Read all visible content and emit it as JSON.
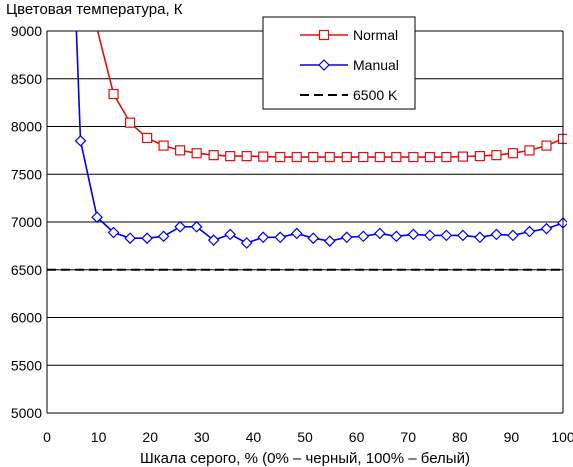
{
  "chart_data": {
    "type": "line",
    "title": "Цветовая температура, К",
    "xlabel": "Шкала серого, % (0% – черный, 100% – белый)",
    "ylabel": "",
    "xlim": [
      0,
      100
    ],
    "ylim": [
      5000,
      9000
    ],
    "x_ticks": [
      "0",
      "10",
      "20",
      "30",
      "40",
      "50",
      "60",
      "70",
      "80",
      "90",
      "100"
    ],
    "y_ticks": [
      "9000",
      "8500",
      "8000",
      "7500",
      "7000",
      "6500",
      "6000",
      "5500",
      "5000"
    ],
    "grid": "horizontal",
    "legend_position": "top-right",
    "series": [
      {
        "name": "Normal",
        "color": "#e01010",
        "marker": "square",
        "line": "solid",
        "points": [
          [
            9.8,
            9000
          ],
          [
            12.9,
            8340
          ],
          [
            16.1,
            8040
          ],
          [
            19.4,
            7880
          ],
          [
            22.6,
            7800
          ],
          [
            25.8,
            7750
          ],
          [
            29.0,
            7720
          ],
          [
            32.3,
            7700
          ],
          [
            35.5,
            7690
          ],
          [
            38.7,
            7690
          ],
          [
            41.9,
            7685
          ],
          [
            45.2,
            7680
          ],
          [
            48.4,
            7680
          ],
          [
            51.6,
            7680
          ],
          [
            54.8,
            7680
          ],
          [
            58.1,
            7680
          ],
          [
            61.3,
            7680
          ],
          [
            64.5,
            7680
          ],
          [
            67.7,
            7680
          ],
          [
            71.0,
            7680
          ],
          [
            74.2,
            7680
          ],
          [
            77.4,
            7680
          ],
          [
            80.6,
            7685
          ],
          [
            83.9,
            7690
          ],
          [
            87.1,
            7700
          ],
          [
            90.3,
            7720
          ],
          [
            93.5,
            7750
          ],
          [
            96.8,
            7800
          ],
          [
            100.0,
            7870
          ]
        ]
      },
      {
        "name": "Manual",
        "color": "#0000ee",
        "marker": "diamond",
        "line": "solid",
        "points": [
          [
            5.7,
            9000
          ],
          [
            6.5,
            7850
          ],
          [
            9.7,
            7050
          ],
          [
            12.9,
            6890
          ],
          [
            16.1,
            6830
          ],
          [
            19.4,
            6830
          ],
          [
            22.6,
            6850
          ],
          [
            25.8,
            6950
          ],
          [
            29.0,
            6950
          ],
          [
            32.3,
            6810
          ],
          [
            35.5,
            6870
          ],
          [
            38.7,
            6780
          ],
          [
            41.9,
            6840
          ],
          [
            45.2,
            6840
          ],
          [
            48.4,
            6880
          ],
          [
            51.6,
            6830
          ],
          [
            54.8,
            6800
          ],
          [
            58.1,
            6840
          ],
          [
            61.3,
            6850
          ],
          [
            64.5,
            6880
          ],
          [
            67.7,
            6850
          ],
          [
            71.0,
            6870
          ],
          [
            74.2,
            6860
          ],
          [
            77.4,
            6860
          ],
          [
            80.6,
            6860
          ],
          [
            83.9,
            6840
          ],
          [
            87.1,
            6870
          ],
          [
            90.3,
            6860
          ],
          [
            93.5,
            6900
          ],
          [
            96.8,
            6930
          ],
          [
            100.0,
            6990
          ]
        ]
      },
      {
        "name": "6500 K",
        "color": "#000000",
        "marker": "none",
        "line": "dashed",
        "points": [
          [
            0,
            6500
          ],
          [
            100,
            6500
          ]
        ]
      }
    ]
  }
}
